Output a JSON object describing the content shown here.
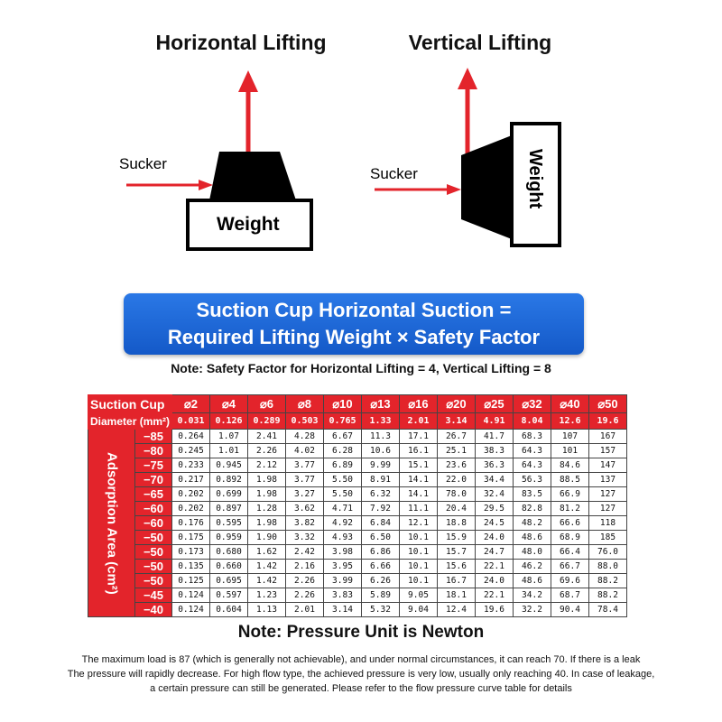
{
  "diagrams": {
    "horizontal": {
      "title": "Horizontal Lifting",
      "sucker": "Sucker",
      "weight": "Weight"
    },
    "vertical": {
      "title": "Vertical Lifting",
      "sucker": "Sucker",
      "weight": "Weight"
    },
    "arrow_color": "#e3242b"
  },
  "banner": {
    "line1": "Suction Cup Horizontal Suction =",
    "line2": "Required Lifting Weight × Safety Factor",
    "color": "#1f6ad8"
  },
  "note_safety": "Note: Safety Factor for Horizontal Lifting = 4, Vertical Lifting = 8",
  "table": {
    "header_label": "Suction Cup",
    "area_label": "Diameter (mm²)",
    "side_label": "Adsorption Area (cm²)",
    "diameters": [
      "⌀2",
      "⌀4",
      "⌀6",
      "⌀8",
      "⌀10",
      "⌀13",
      "⌀16",
      "⌀20",
      "⌀25",
      "⌀32",
      "⌀40",
      "⌀50"
    ],
    "areas": [
      "0.031",
      "0.126",
      "0.289",
      "0.503",
      "0.765",
      "1.33",
      "2.01",
      "3.14",
      "4.91",
      "8.04",
      "12.6",
      "19.6"
    ],
    "rows": [
      {
        "p": "−85",
        "v": [
          "0.264",
          "1.07",
          "2.41",
          "4.28",
          "6.67",
          "11.3",
          "17.1",
          "26.7",
          "41.7",
          "68.3",
          "107",
          "167"
        ]
      },
      {
        "p": "−80",
        "v": [
          "0.245",
          "1.01",
          "2.26",
          "4.02",
          "6.28",
          "10.6",
          "16.1",
          "25.1",
          "38.3",
          "64.3",
          "101",
          "157"
        ]
      },
      {
        "p": "−75",
        "v": [
          "0.233",
          "0.945",
          "2.12",
          "3.77",
          "6.89",
          "9.99",
          "15.1",
          "23.6",
          "36.3",
          "64.3",
          "84.6",
          "147"
        ]
      },
      {
        "p": "−70",
        "v": [
          "0.217",
          "0.892",
          "1.98",
          "3.77",
          "5.50",
          "8.91",
          "14.1",
          "22.0",
          "34.4",
          "56.3",
          "88.5",
          "137"
        ]
      },
      {
        "p": "−65",
        "v": [
          "0.202",
          "0.699",
          "1.98",
          "3.27",
          "5.50",
          "6.32",
          "14.1",
          "78.0",
          "32.4",
          "83.5",
          "66.9",
          "127"
        ]
      },
      {
        "p": "−60",
        "v": [
          "0.202",
          "0.897",
          "1.28",
          "3.62",
          "4.71",
          "7.92",
          "11.1",
          "20.4",
          "29.5",
          "82.8",
          "81.2",
          "127"
        ]
      },
      {
        "p": "−60",
        "v": [
          "0.176",
          "0.595",
          "1.98",
          "3.82",
          "4.92",
          "6.84",
          "12.1",
          "18.8",
          "24.5",
          "48.2",
          "66.6",
          "118"
        ]
      },
      {
        "p": "−50",
        "v": [
          "0.175",
          "0.959",
          "1.90",
          "3.32",
          "4.93",
          "6.50",
          "10.1",
          "15.9",
          "24.0",
          "48.6",
          "68.9",
          "185"
        ]
      },
      {
        "p": "−50",
        "v": [
          "0.173",
          "0.680",
          "1.62",
          "2.42",
          "3.98",
          "6.86",
          "10.1",
          "15.7",
          "24.7",
          "48.0",
          "66.4",
          "76.0"
        ]
      },
      {
        "p": "−50",
        "v": [
          "0.135",
          "0.660",
          "1.42",
          "2.16",
          "3.95",
          "6.66",
          "10.1",
          "15.6",
          "22.1",
          "46.2",
          "66.7",
          "88.0"
        ]
      },
      {
        "p": "−50",
        "v": [
          "0.125",
          "0.695",
          "1.42",
          "2.26",
          "3.99",
          "6.26",
          "10.1",
          "16.7",
          "24.0",
          "48.6",
          "69.6",
          "88.2"
        ]
      },
      {
        "p": "−45",
        "v": [
          "0.124",
          "0.597",
          "1.23",
          "2.26",
          "3.83",
          "5.89",
          "9.05",
          "18.1",
          "22.1",
          "34.2",
          "68.7",
          "88.2"
        ]
      },
      {
        "p": "−40",
        "v": [
          "0.124",
          "0.604",
          "1.13",
          "2.01",
          "3.14",
          "5.32",
          "9.04",
          "12.4",
          "19.6",
          "32.2",
          "90.4",
          "78.4"
        ]
      }
    ]
  },
  "note_pressure": "Note: Pressure Unit is Newton",
  "paragraph": [
    "The maximum load is 87 (which is generally not achievable), and under normal circumstances, it can reach 70. If there is a leak",
    "The pressure will rapidly decrease. For high flow type, the achieved pressure is very low, usually only reaching 40. In case of leakage,",
    "a certain pressure can still be generated. Please refer to the flow pressure curve table for details"
  ]
}
